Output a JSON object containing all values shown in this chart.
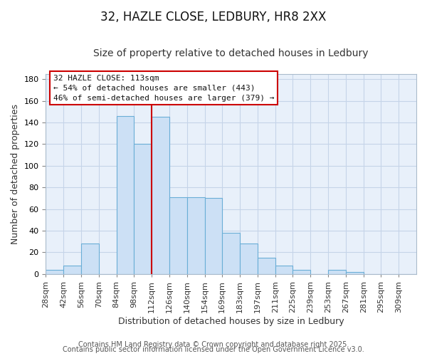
{
  "title_line1": "32, HAZLE CLOSE, LEDBURY, HR8 2XX",
  "title_line2": "Size of property relative to detached houses in Ledbury",
  "xlabel": "Distribution of detached houses by size in Ledbury",
  "ylabel": "Number of detached properties",
  "bar_labels": [
    "28sqm",
    "42sqm",
    "56sqm",
    "70sqm",
    "84sqm",
    "98sqm",
    "112sqm",
    "126sqm",
    "140sqm",
    "154sqm",
    "169sqm",
    "183sqm",
    "197sqm",
    "211sqm",
    "225sqm",
    "239sqm",
    "253sqm",
    "267sqm",
    "281sqm",
    "295sqm",
    "309sqm"
  ],
  "bar_heights": [
    4,
    8,
    28,
    0,
    146,
    120,
    145,
    71,
    71,
    70,
    38,
    28,
    15,
    8,
    4,
    0,
    4,
    2,
    0,
    0,
    0
  ],
  "bar_color": "#cce0f5",
  "bar_edge_color": "#6aaed6",
  "vline_x_index": 6,
  "vline_color": "#cc0000",
  "ylim": [
    0,
    185
  ],
  "yticks": [
    0,
    20,
    40,
    60,
    80,
    100,
    120,
    140,
    160,
    180
  ],
  "annotation_title": "32 HAZLE CLOSE: 113sqm",
  "annotation_line1": "← 54% of detached houses are smaller (443)",
  "annotation_line2": "46% of semi-detached houses are larger (379) →",
  "annotation_box_color": "#ffffff",
  "annotation_box_edge": "#cc0000",
  "footer_line1": "Contains HM Land Registry data © Crown copyright and database right 2025.",
  "footer_line2": "Contains public sector information licensed under the Open Government Licence v3.0.",
  "bg_color": "#ffffff",
  "plot_bg_color": "#e8f0fa",
  "grid_color": "#c5d4e8",
  "title1_fontsize": 12,
  "title2_fontsize": 10,
  "axis_label_fontsize": 9,
  "tick_fontsize": 8,
  "footer_fontsize": 7,
  "annotation_fontsize": 8
}
